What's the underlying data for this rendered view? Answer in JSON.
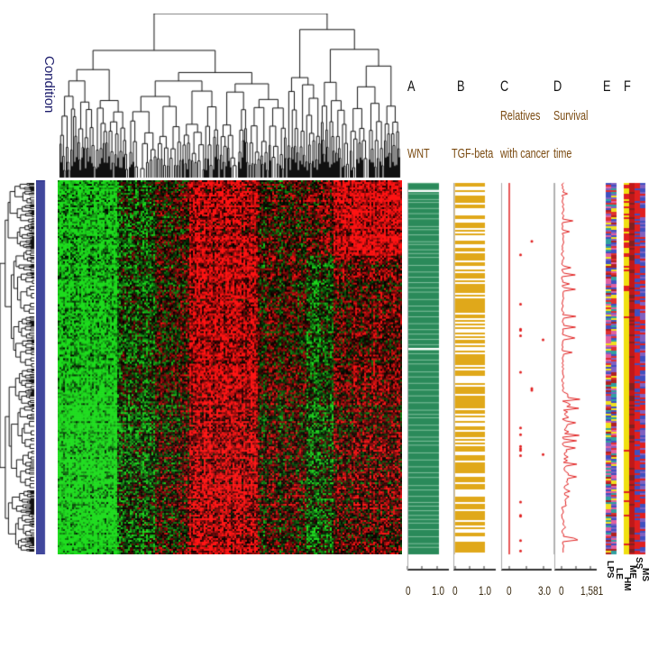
{
  "chart_data": {
    "type": "heatmap",
    "title": "",
    "heatmap": {
      "description_row_label": "Condition",
      "color_scale": [
        "#2fd02f",
        "#000000",
        "#ff2020"
      ],
      "has_row_dendrogram": true,
      "has_column_dendrogram": true
    },
    "panels": [
      {
        "letter": "A",
        "title": "WNT",
        "xlim": [
          0,
          1.0
        ],
        "tick_labels": [
          "0",
          "1.0"
        ],
        "color": "#2a8a5a",
        "type": "bar"
      },
      {
        "letter": "B",
        "title": "TGF-beta",
        "xlim": [
          0,
          1.0
        ],
        "tick_labels": [
          "0",
          "1.0"
        ],
        "color": "#e0a81a",
        "type": "bar"
      },
      {
        "letter": "C",
        "title": "Relatives with cancer",
        "title_lines": [
          "Relatives",
          "with cancer"
        ],
        "xlim": [
          0,
          3.0
        ],
        "tick_labels": [
          "0",
          "3.0"
        ],
        "color": "#e02020",
        "type": "scatter"
      },
      {
        "letter": "D",
        "title": "Survival time",
        "title_lines": [
          "Survival",
          "time"
        ],
        "xlim": [
          0,
          1581
        ],
        "tick_labels": [
          "0",
          "1,581"
        ],
        "color": "#e02020",
        "type": "line"
      },
      {
        "letter": "E",
        "column_labels": [
          "LPS",
          "LE"
        ],
        "type": "categorical"
      },
      {
        "letter": "F",
        "column_labels": [
          "HM",
          "ME",
          "SS",
          "MS"
        ],
        "type": "categorical"
      }
    ]
  }
}
